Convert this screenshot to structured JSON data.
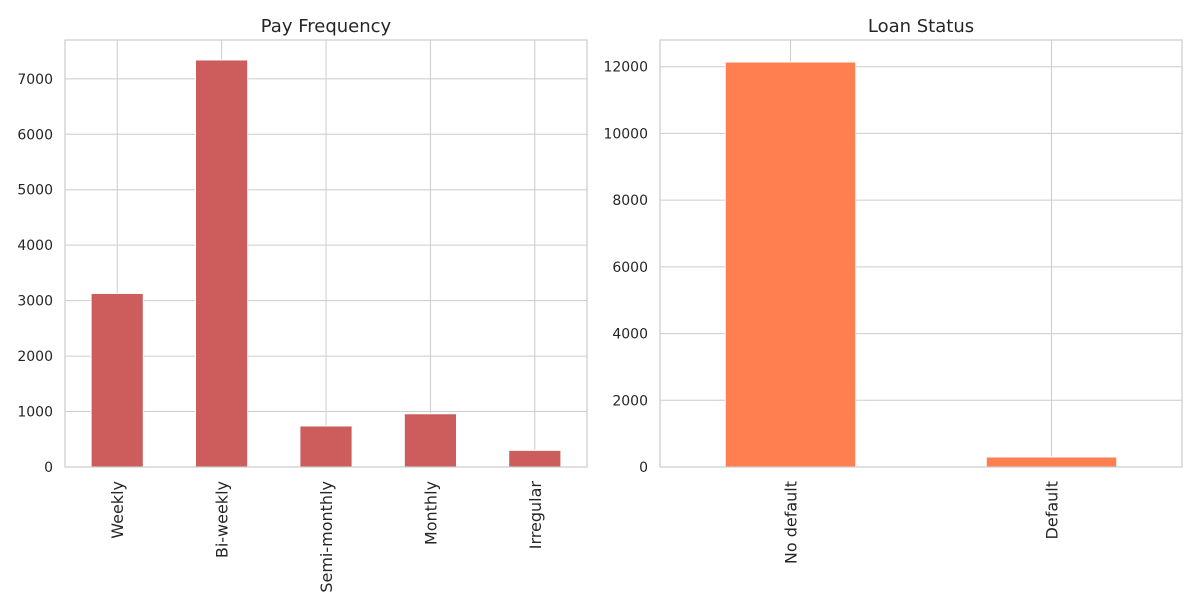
{
  "chart_data": [
    {
      "type": "bar",
      "title": "Pay Frequency",
      "xlabel": "",
      "ylabel": "",
      "categories": [
        "Weekly",
        "Bi-weekly",
        "Semi-monthly",
        "Monthly",
        "Irregular"
      ],
      "values": [
        3130,
        7340,
        740,
        960,
        300
      ],
      "ylim": [
        0,
        7700
      ],
      "yticks": [
        0,
        1000,
        2000,
        3000,
        4000,
        5000,
        6000,
        7000
      ],
      "ytick_labels": [
        "0",
        "1000",
        "2000",
        "3000",
        "4000",
        "5000",
        "6000",
        "7000"
      ],
      "color": "#cd5c5c",
      "grid": true,
      "legend": "none"
    },
    {
      "type": "bar",
      "title": "Loan Status",
      "xlabel": "",
      "ylabel": "",
      "categories": [
        "No default",
        "Default"
      ],
      "values": [
        12140,
        300
      ],
      "ylim": [
        0,
        12800
      ],
      "yticks": [
        0,
        2000,
        4000,
        6000,
        8000,
        10000,
        12000
      ],
      "ytick_labels": [
        "0",
        "2000",
        "4000",
        "6000",
        "8000",
        "10000",
        "12000"
      ],
      "color": "#ff7f50",
      "grid": true,
      "legend": "none"
    }
  ]
}
